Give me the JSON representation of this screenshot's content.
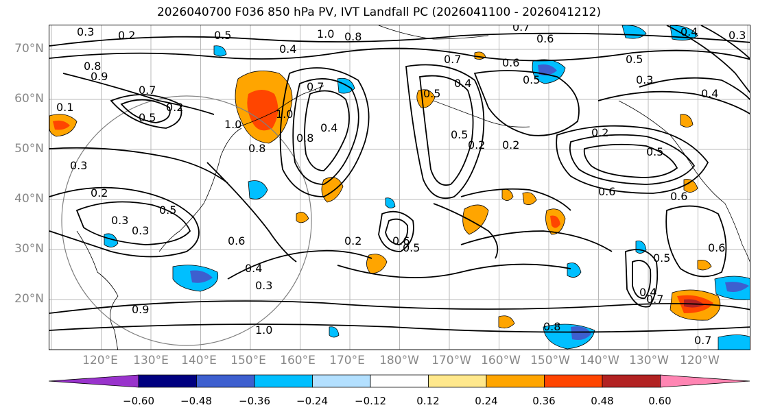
{
  "title": "2026040700 F036 850 hPa PV, IVT Landfall PC (2026041100 - 2026041212)",
  "lat_labels": [
    "70°N",
    "60°N",
    "50°N",
    "40°N",
    "30°N",
    "20°N"
  ],
  "lon_labels": [
    "120°E",
    "130°E",
    "140°E",
    "150°E",
    "160°E",
    "170°E",
    "180°W",
    "170°W",
    "160°W",
    "150°W",
    "140°W",
    "130°W",
    "120°W"
  ],
  "colorbar": {
    "colors": [
      "#9933cc",
      "#000080",
      "#3d5fcf",
      "#00bfff",
      "#b3e0ff",
      "#ffffff",
      "#ffe88c",
      "#ffa500",
      "#ff4500",
      "#b22222",
      "#ff85b3"
    ],
    "ticks": [
      "−0.60",
      "−0.48",
      "−0.36",
      "−0.24",
      "−0.12",
      "0.12",
      "0.24",
      "0.36",
      "0.48",
      "0.60"
    ]
  },
  "contour_labels": [
    "1.0",
    "0.8",
    "0.7",
    "0.6",
    "0.5",
    "0.4",
    "0.3",
    "0.2",
    "0.8",
    "0.9",
    "0.1",
    "0.7",
    "0.2",
    "1.0",
    "0.8",
    "0.5",
    "0.4",
    "0.8",
    "0.7",
    "1.0",
    "0.7",
    "0.5",
    "0.4",
    "0.6",
    "0.5",
    "0.5",
    "0.2",
    "0.2",
    "0.2",
    "0.3",
    "0.4",
    "0.5",
    "0.6",
    "0.6",
    "0.3",
    "0.2",
    "0.3",
    "0.3",
    "0.5",
    "0.6",
    "0.4",
    "0.3",
    "0.6",
    "0.5",
    "0.2",
    "0.5",
    "0.4",
    "0.7",
    "0.9"
  ]
}
